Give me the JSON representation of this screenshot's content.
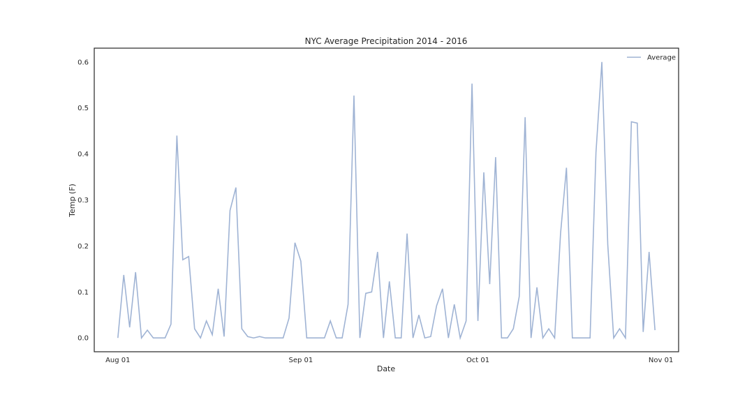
{
  "chart_data": {
    "type": "line",
    "title": "NYC Average Precipitation 2014 - 2016",
    "xlabel": "Date",
    "ylabel": "Temp (F)",
    "x_start": "2016-08-01",
    "x_tick_labels": [
      "Aug 01",
      "Sep 01",
      "Oct 01",
      "Nov 01"
    ],
    "x_tick_dates": [
      "2016-08-01",
      "2016-09-01",
      "2016-10-01",
      "2016-11-01"
    ],
    "xlim": [
      "2016-07-28",
      "2016-11-04"
    ],
    "ylim": [
      -0.03,
      0.63
    ],
    "y_ticks": [
      0.0,
      0.1,
      0.2,
      0.3,
      0.4,
      0.5,
      0.6
    ],
    "y_tick_labels": [
      "0.0",
      "0.1",
      "0.2",
      "0.3",
      "0.4",
      "0.5",
      "0.6"
    ],
    "grid": false,
    "legend_position": "top-right",
    "series": [
      {
        "name": "Average",
        "color": "#9fb3d4",
        "values": [
          0.0,
          0.137,
          0.023,
          0.143,
          0.0,
          0.017,
          0.0,
          0.0,
          0.0,
          0.03,
          0.44,
          0.17,
          0.177,
          0.02,
          0.0,
          0.037,
          0.007,
          0.107,
          0.003,
          0.277,
          0.327,
          0.02,
          0.003,
          0.0,
          0.003,
          0.0,
          0.0,
          0.0,
          0.0,
          0.043,
          0.207,
          0.167,
          0.0,
          0.0,
          0.0,
          0.0,
          0.037,
          0.0,
          0.0,
          0.073,
          0.527,
          0.0,
          0.097,
          0.1,
          0.187,
          0.0,
          0.123,
          0.0,
          0.0,
          0.227,
          0.0,
          0.05,
          0.0,
          0.003,
          0.07,
          0.107,
          0.0,
          0.073,
          0.0,
          0.037,
          0.553,
          0.037,
          0.36,
          0.117,
          0.393,
          0.0,
          0.0,
          0.02,
          0.09,
          0.48,
          0.0,
          0.11,
          0.0,
          0.02,
          0.0,
          0.227,
          0.37,
          0.0,
          0.0,
          0.0,
          0.0,
          0.403,
          0.6,
          0.203,
          0.0,
          0.02,
          0.0,
          0.47,
          0.467,
          0.013,
          0.187,
          0.017
        ]
      }
    ]
  }
}
